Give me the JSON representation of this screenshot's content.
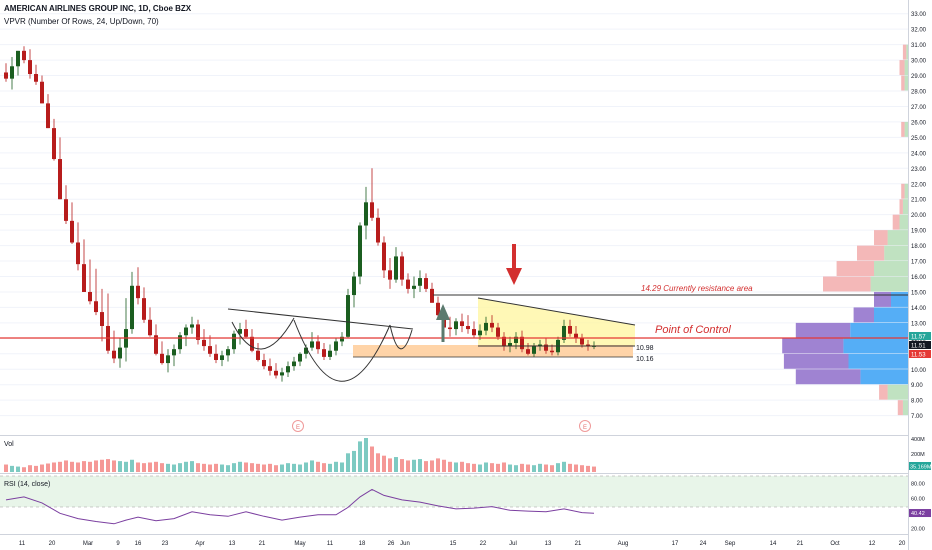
{
  "header": {
    "symbol_title": "AMERICAN AIRLINES GROUP INC, 1D, Cboe BZX",
    "vpvr_label": "VPVR (Number Of Rows, 24, Up/Down, 70)"
  },
  "panes": {
    "volume_label": "Vol",
    "rsi_label": "RSI (14, close)"
  },
  "annotations": {
    "resistance_text": "14.29 Currently resistance area",
    "poc_text": "Point of Control",
    "support_upper": "10.98",
    "support_lower": "10.16",
    "earnings_marker": "E"
  },
  "price_badges": {
    "current_red": "11.53",
    "poc_price": "11.57",
    "last_dark": "11.51"
  },
  "volume_scale": {
    "ticks": [
      "400M",
      "200M",
      "0"
    ],
    "current": "35.169M"
  },
  "rsi_scale": {
    "ticks": [
      "80.00",
      "60.00",
      "40.00",
      "20.00"
    ],
    "current": "40.42"
  },
  "colors": {
    "up": "#26a69a",
    "down": "#ef5350",
    "candle_up": "#1b5e20",
    "candle_down": "#b71c1c",
    "poc_line": "#e53935",
    "vp_up": "#42a5f5",
    "vp_down": "#9575cd",
    "vp_up_light": "#a5d6a7",
    "vp_down_light": "#ef9a9a",
    "zone_orange": "#ffcc99",
    "triangle_fill": "#fff59d",
    "rsi_bg": "#e8f5e9",
    "rsi_line": "#7b3fa0"
  },
  "chart_data": {
    "type": "candlestick",
    "y_axis_ticks": [
      7,
      8,
      9,
      10,
      11,
      12,
      13,
      14,
      15,
      16,
      17,
      18,
      19,
      20,
      21,
      22,
      23,
      24,
      25,
      26,
      27,
      28,
      29,
      30,
      31,
      32,
      33
    ],
    "ylim": [
      6.2,
      33.5
    ],
    "x_tick_labels": [
      "11",
      "20",
      "Mar",
      "9",
      "16",
      "23",
      "Apr",
      "13",
      "21",
      "May",
      "11",
      "18",
      "26",
      "Jun",
      "15",
      "22",
      "Jul",
      "13",
      "21",
      "Aug",
      "17",
      "24",
      "Sep",
      "14",
      "21",
      "Oct",
      "12",
      "20"
    ],
    "price_path": [
      [
        0,
        29.2,
        29.8,
        28.6
      ],
      [
        1,
        28.8,
        30.2,
        28.1
      ],
      [
        2,
        29.6,
        30.4,
        29.0
      ],
      [
        3,
        30.6,
        30.9,
        29.8
      ],
      [
        4,
        30.0,
        30.7,
        28.8
      ],
      [
        5,
        29.1,
        29.7,
        28.4
      ],
      [
        6,
        28.6,
        29.0,
        27.5
      ],
      [
        7,
        27.2,
        27.8,
        25.8
      ],
      [
        8,
        25.6,
        26.2,
        23.5
      ],
      [
        9,
        23.6,
        25.0,
        21.2
      ],
      [
        10,
        21.0,
        21.9,
        19.4
      ],
      [
        11,
        19.6,
        20.8,
        18.1
      ],
      [
        12,
        18.2,
        19.5,
        16.4
      ],
      [
        13,
        16.8,
        18.4,
        15.5
      ],
      [
        14,
        15.0,
        17.1,
        14.2
      ],
      [
        15,
        14.4,
        16.5,
        13.5
      ],
      [
        16,
        13.7,
        15.2,
        11.8
      ],
      [
        17,
        12.8,
        14.9,
        11.0
      ],
      [
        18,
        11.2,
        12.5,
        10.4
      ],
      [
        19,
        10.7,
        12.0,
        10.1
      ],
      [
        20,
        11.4,
        14.6,
        10.5
      ],
      [
        21,
        12.6,
        16.3,
        12.3
      ],
      [
        22,
        15.4,
        16.6,
        14.2
      ],
      [
        23,
        14.6,
        15.3,
        13.0
      ],
      [
        24,
        13.2,
        14.0,
        12.1
      ],
      [
        25,
        12.2,
        12.9,
        10.9
      ],
      [
        26,
        11.0,
        11.8,
        10.3
      ],
      [
        27,
        10.4,
        11.3,
        9.8
      ],
      [
        28,
        10.9,
        11.6,
        10.2
      ],
      [
        29,
        11.3,
        12.4,
        11.0
      ],
      [
        30,
        12.2,
        12.9,
        11.5
      ],
      [
        31,
        12.7,
        13.4,
        12.3
      ],
      [
        32,
        12.9,
        13.2,
        11.6
      ],
      [
        33,
        11.9,
        12.6,
        11.2
      ],
      [
        34,
        11.5,
        12.2,
        10.8
      ],
      [
        35,
        11.0,
        11.6,
        10.4
      ],
      [
        36,
        10.6,
        11.2,
        10.2
      ],
      [
        37,
        10.9,
        11.5,
        10.5
      ],
      [
        38,
        11.3,
        12.5,
        11.0
      ],
      [
        39,
        12.3,
        13.0,
        11.6
      ],
      [
        40,
        12.6,
        13.2,
        12.0
      ],
      [
        41,
        12.1,
        12.6,
        11.1
      ],
      [
        42,
        11.2,
        11.7,
        10.5
      ],
      [
        43,
        10.6,
        11.0,
        10.0
      ],
      [
        44,
        10.2,
        10.7,
        9.6
      ],
      [
        45,
        9.9,
        10.4,
        9.4
      ],
      [
        46,
        9.6,
        10.1,
        9.2
      ],
      [
        47,
        9.8,
        10.5,
        9.5
      ],
      [
        48,
        10.2,
        10.8,
        9.9
      ],
      [
        49,
        10.5,
        11.1,
        10.2
      ],
      [
        50,
        11.0,
        11.6,
        10.7
      ],
      [
        51,
        11.4,
        12.4,
        11.2
      ],
      [
        52,
        11.8,
        12.2,
        11.0
      ],
      [
        53,
        11.3,
        11.7,
        10.6
      ],
      [
        54,
        10.8,
        11.6,
        10.6
      ],
      [
        55,
        11.2,
        12.0,
        10.9
      ],
      [
        56,
        11.8,
        12.4,
        11.5
      ],
      [
        57,
        12.1,
        15.2,
        12.0
      ],
      [
        58,
        14.8,
        16.3,
        14.0
      ],
      [
        59,
        16.0,
        19.5,
        15.5
      ],
      [
        60,
        19.3,
        21.8,
        18.4
      ],
      [
        61,
        20.8,
        23.0,
        19.6
      ],
      [
        62,
        19.8,
        20.4,
        18.0
      ],
      [
        63,
        18.2,
        18.6,
        15.9
      ],
      [
        64,
        16.4,
        17.2,
        15.2
      ],
      [
        65,
        15.8,
        17.9,
        15.6
      ],
      [
        66,
        17.3,
        17.6,
        15.4
      ],
      [
        67,
        15.8,
        16.2,
        14.9
      ],
      [
        68,
        15.2,
        16.0,
        14.6
      ],
      [
        69,
        15.4,
        16.4,
        15.0
      ],
      [
        70,
        15.9,
        16.2,
        15.0
      ],
      [
        71,
        15.2,
        15.6,
        14.3
      ],
      [
        72,
        14.3,
        14.7,
        13.4
      ],
      [
        73,
        13.5,
        13.9,
        12.5
      ],
      [
        74,
        12.7,
        13.4,
        12.1
      ],
      [
        75,
        12.6,
        13.3,
        12.2
      ],
      [
        76,
        13.1,
        13.6,
        12.4
      ],
      [
        77,
        12.8,
        13.5,
        12.3
      ],
      [
        78,
        12.6,
        13.1,
        12.0
      ],
      [
        79,
        12.2,
        12.9,
        11.9
      ],
      [
        80,
        12.5,
        13.4,
        12.2
      ],
      [
        81,
        13.0,
        13.5,
        12.4
      ],
      [
        82,
        12.7,
        13.0,
        11.9
      ],
      [
        83,
        12.1,
        12.4,
        11.2
      ],
      [
        84,
        11.5,
        12.1,
        11.1
      ],
      [
        85,
        11.7,
        12.4,
        11.3
      ],
      [
        86,
        12.1,
        12.5,
        11.1
      ],
      [
        87,
        11.3,
        11.7,
        10.9
      ],
      [
        88,
        11.0,
        11.7,
        10.8
      ],
      [
        89,
        11.5,
        11.9,
        11.2
      ],
      [
        90,
        11.6,
        12.0,
        11.0
      ],
      [
        91,
        11.2,
        11.6,
        10.9
      ],
      [
        92,
        11.1,
        12.1,
        10.9
      ],
      [
        93,
        11.9,
        13.2,
        11.7
      ],
      [
        94,
        12.8,
        13.2,
        12.1
      ],
      [
        95,
        12.3,
        12.8,
        11.7
      ],
      [
        96,
        12.0,
        12.3,
        11.4
      ],
      [
        97,
        11.6,
        11.9,
        11.2
      ],
      [
        98,
        11.5,
        11.8,
        11.3
      ]
    ],
    "volume_profile": [
      [
        7.0,
        8.0,
        0.03,
        0.03
      ],
      [
        8.0,
        9.0,
        0.12,
        0.05
      ],
      [
        9.0,
        10.0,
        0.28,
        0.38
      ],
      [
        10.0,
        11.0,
        0.35,
        0.38
      ],
      [
        11.0,
        12.0,
        0.38,
        0.36
      ],
      [
        12.0,
        13.0,
        0.34,
        0.32
      ],
      [
        13.0,
        14.0,
        0.2,
        0.12
      ],
      [
        14.0,
        15.0,
        0.1,
        0.1
      ],
      [
        15.0,
        16.0,
        0.22,
        0.28
      ],
      [
        16.0,
        17.0,
        0.2,
        0.22
      ],
      [
        17.0,
        18.0,
        0.14,
        0.16
      ],
      [
        18.0,
        19.0,
        0.12,
        0.08
      ],
      [
        19.0,
        20.0,
        0.05,
        0.04
      ],
      [
        20.0,
        21.0,
        0.03,
        0.02
      ],
      [
        21.0,
        22.0,
        0.02,
        0.02
      ],
      [
        25.0,
        26.0,
        0.02,
        0.02
      ],
      [
        28.0,
        29.0,
        0.02,
        0.02
      ],
      [
        29.0,
        30.0,
        0.02,
        0.03
      ],
      [
        30.0,
        31.0,
        0.01,
        0.02
      ]
    ],
    "volume_bars": [
      [
        0,
        0.22
      ],
      [
        1,
        0.18
      ],
      [
        2,
        0.16
      ],
      [
        3,
        0.14
      ],
      [
        4,
        0.2
      ],
      [
        5,
        0.18
      ],
      [
        6,
        0.22
      ],
      [
        7,
        0.25
      ],
      [
        8,
        0.28
      ],
      [
        9,
        0.3
      ],
      [
        10,
        0.34
      ],
      [
        11,
        0.3
      ],
      [
        12,
        0.28
      ],
      [
        13,
        0.32
      ],
      [
        14,
        0.3
      ],
      [
        15,
        0.34
      ],
      [
        16,
        0.36
      ],
      [
        17,
        0.38
      ],
      [
        18,
        0.34
      ],
      [
        19,
        0.32
      ],
      [
        20,
        0.3
      ],
      [
        21,
        0.36
      ],
      [
        22,
        0.28
      ],
      [
        23,
        0.26
      ],
      [
        24,
        0.28
      ],
      [
        25,
        0.3
      ],
      [
        26,
        0.26
      ],
      [
        27,
        0.24
      ],
      [
        28,
        0.22
      ],
      [
        29,
        0.26
      ],
      [
        30,
        0.3
      ],
      [
        31,
        0.32
      ],
      [
        32,
        0.26
      ],
      [
        33,
        0.24
      ],
      [
        34,
        0.22
      ],
      [
        35,
        0.24
      ],
      [
        36,
        0.22
      ],
      [
        37,
        0.2
      ],
      [
        38,
        0.26
      ],
      [
        39,
        0.3
      ],
      [
        40,
        0.28
      ],
      [
        41,
        0.26
      ],
      [
        42,
        0.24
      ],
      [
        43,
        0.22
      ],
      [
        44,
        0.24
      ],
      [
        45,
        0.2
      ],
      [
        46,
        0.22
      ],
      [
        47,
        0.26
      ],
      [
        48,
        0.24
      ],
      [
        49,
        0.22
      ],
      [
        50,
        0.28
      ],
      [
        51,
        0.34
      ],
      [
        52,
        0.3
      ],
      [
        53,
        0.26
      ],
      [
        54,
        0.24
      ],
      [
        55,
        0.3
      ],
      [
        56,
        0.28
      ],
      [
        57,
        0.55
      ],
      [
        58,
        0.62
      ],
      [
        59,
        0.9
      ],
      [
        60,
        1.0
      ],
      [
        61,
        0.75
      ],
      [
        62,
        0.55
      ],
      [
        63,
        0.48
      ],
      [
        64,
        0.4
      ],
      [
        65,
        0.44
      ],
      [
        66,
        0.38
      ],
      [
        67,
        0.34
      ],
      [
        68,
        0.36
      ],
      [
        69,
        0.38
      ],
      [
        70,
        0.32
      ],
      [
        71,
        0.34
      ],
      [
        72,
        0.4
      ],
      [
        73,
        0.36
      ],
      [
        74,
        0.3
      ],
      [
        75,
        0.28
      ],
      [
        76,
        0.3
      ],
      [
        77,
        0.26
      ],
      [
        78,
        0.24
      ],
      [
        79,
        0.22
      ],
      [
        80,
        0.28
      ],
      [
        81,
        0.26
      ],
      [
        82,
        0.24
      ],
      [
        83,
        0.28
      ],
      [
        84,
        0.22
      ],
      [
        85,
        0.2
      ],
      [
        86,
        0.24
      ],
      [
        87,
        0.22
      ],
      [
        88,
        0.2
      ],
      [
        89,
        0.24
      ],
      [
        90,
        0.22
      ],
      [
        91,
        0.2
      ],
      [
        92,
        0.26
      ],
      [
        93,
        0.3
      ],
      [
        94,
        0.24
      ],
      [
        95,
        0.22
      ],
      [
        96,
        0.2
      ],
      [
        97,
        0.18
      ],
      [
        98,
        0.16
      ]
    ],
    "rsi": [
      [
        0,
        58
      ],
      [
        3,
        62
      ],
      [
        6,
        54
      ],
      [
        9,
        40
      ],
      [
        12,
        33
      ],
      [
        15,
        29
      ],
      [
        18,
        26
      ],
      [
        20,
        31
      ],
      [
        22,
        35
      ],
      [
        25,
        30
      ],
      [
        28,
        33
      ],
      [
        31,
        42
      ],
      [
        34,
        38
      ],
      [
        37,
        36
      ],
      [
        40,
        42
      ],
      [
        43,
        36
      ],
      [
        46,
        31
      ],
      [
        49,
        35
      ],
      [
        52,
        38
      ],
      [
        55,
        38
      ],
      [
        57,
        48
      ],
      [
        59,
        62
      ],
      [
        61,
        72
      ],
      [
        63,
        64
      ],
      [
        66,
        58
      ],
      [
        69,
        55
      ],
      [
        72,
        50
      ],
      [
        75,
        46
      ],
      [
        78,
        47
      ],
      [
        81,
        49
      ],
      [
        84,
        44
      ],
      [
        87,
        43
      ],
      [
        90,
        42
      ],
      [
        93,
        46
      ],
      [
        96,
        41
      ],
      [
        98,
        40
      ]
    ],
    "rsi_ylim": [
      15,
      90
    ],
    "volume_ylim": [
      0,
      450
    ]
  }
}
